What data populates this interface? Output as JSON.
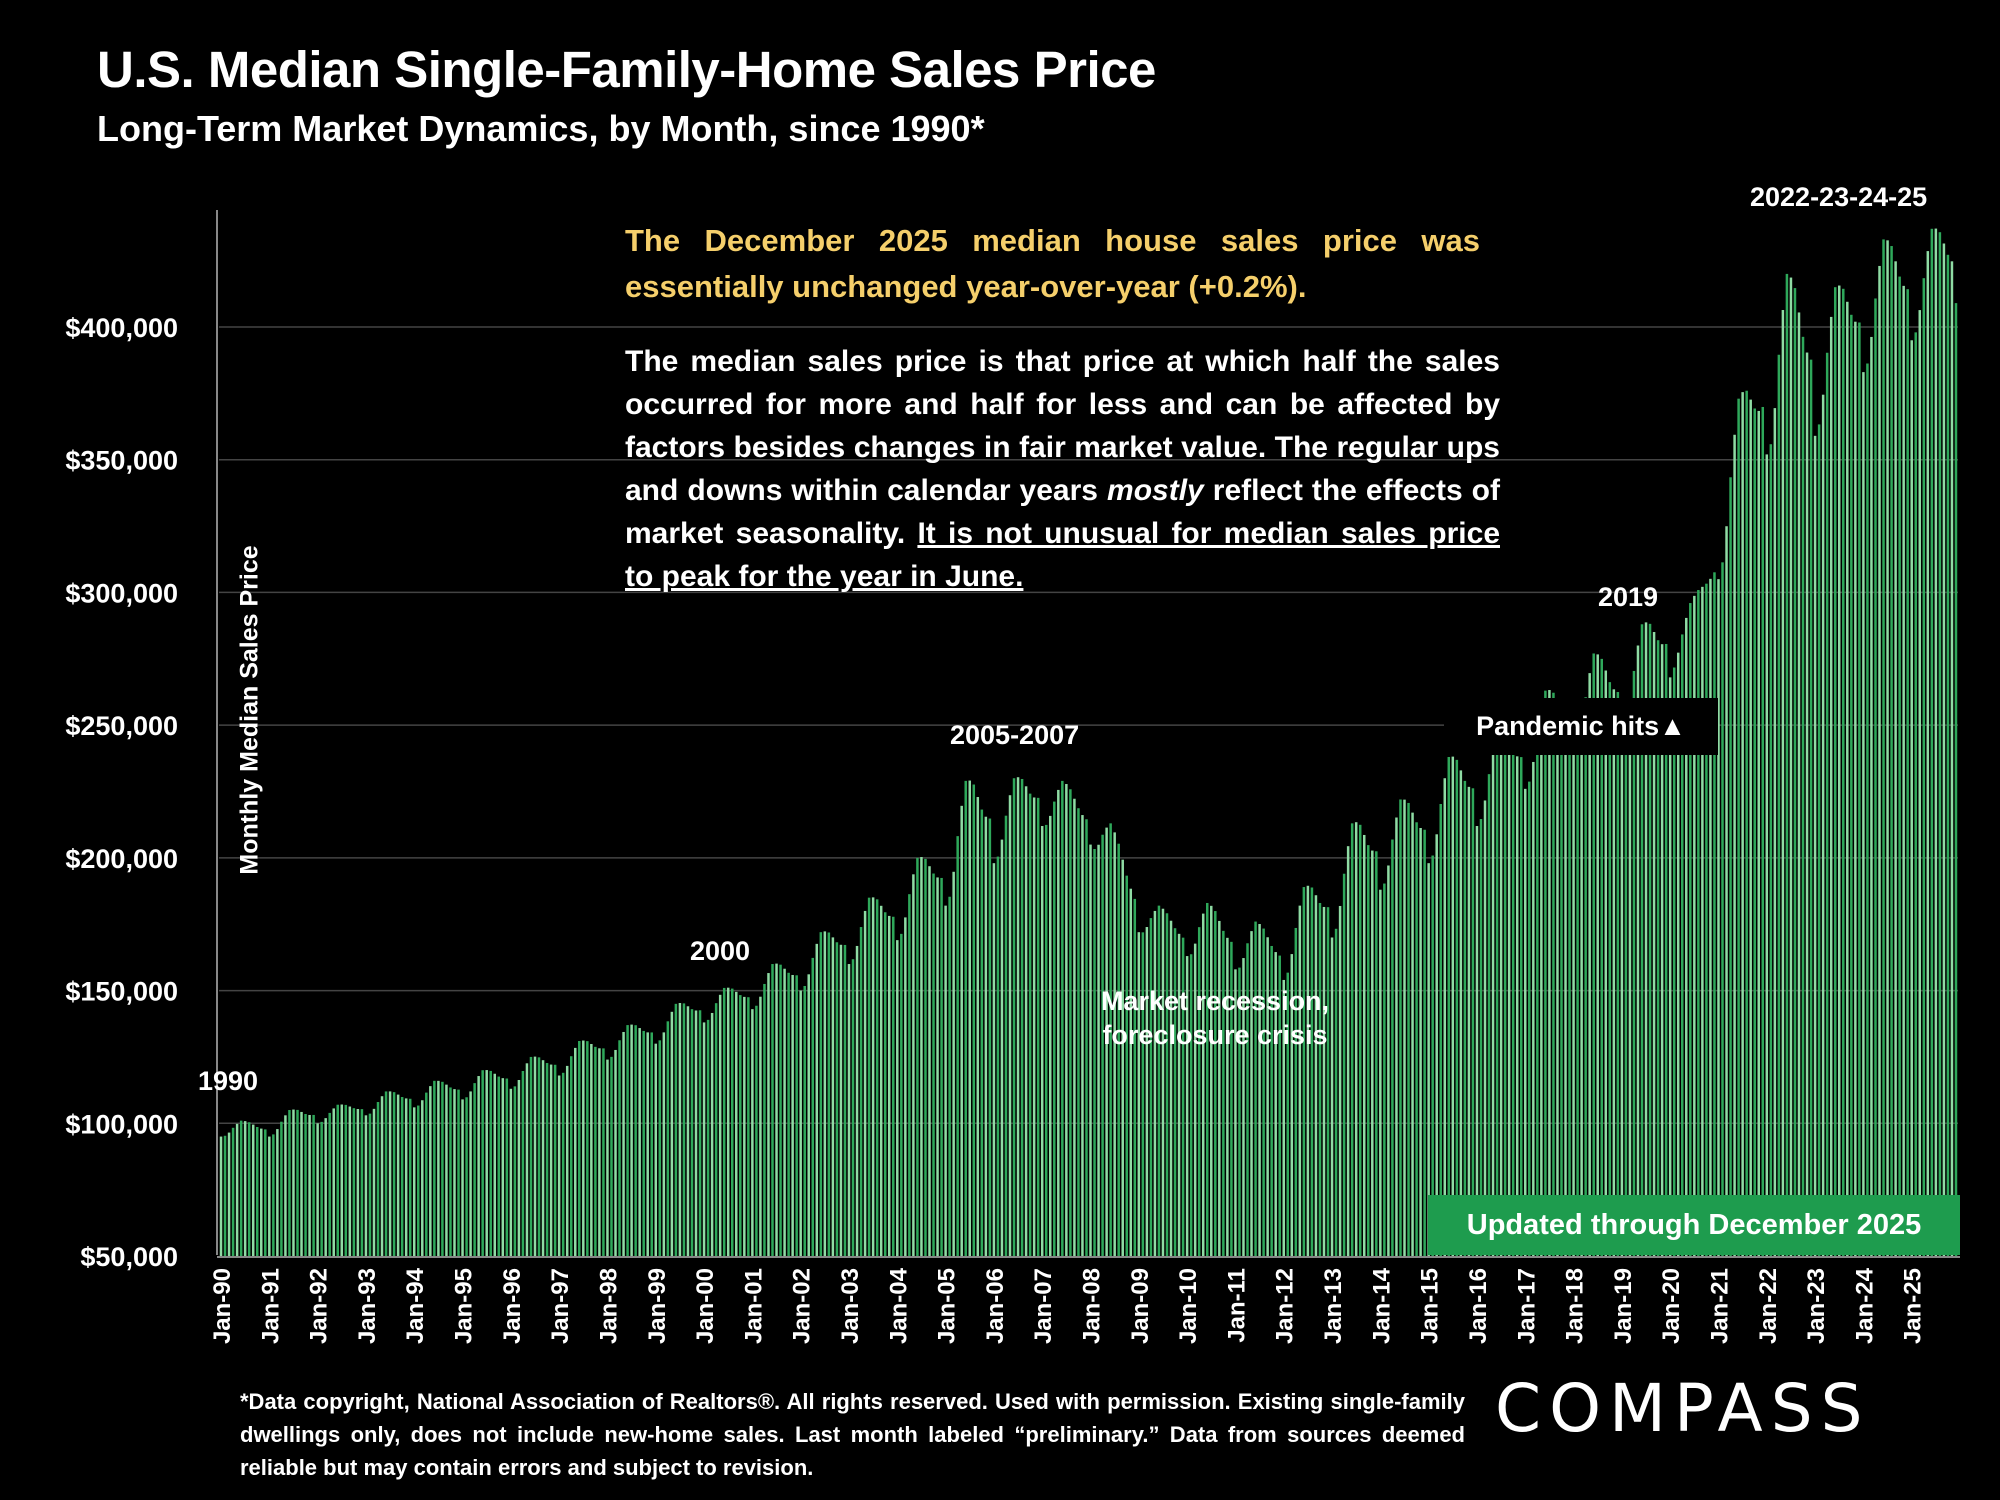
{
  "title": "U.S. Median Single-Family-Home Sales Price",
  "subtitle": "Long-Term Market Dynamics, by Month, since 1990*",
  "callout_highlight": "The December  2025 median house sales price was essentially unchanged year-over-year (+0.2%).",
  "callout_body_plain": "The median sales price is that price at which half the sales occurred for more and half for less and can be affected by factors besides changes in fair market value. The regular ups and downs within calendar years ",
  "callout_body_italic": "mostly",
  "callout_body_plain2": " reflect the effects of market seasonality. ",
  "callout_body_underlined": "It is not unusual for median sales price to peak for the year in June.",
  "annotations": {
    "a1990": "1990",
    "a2000": "2000",
    "a2005": "2005-2007",
    "a2019": "2019",
    "a2022": "2022-23-24-25",
    "recession": "Market recession, foreclosure crisis",
    "pandemic": "Pandemic hits▲"
  },
  "updated_badge": "Updated through December 2025",
  "footnote": "*Data copyright, National Association of Realtors®. All rights reserved. Used with permission. Existing single-family dwellings only, does  not include new-home sales. Last month labeled “preliminary.” Data from sources deemed reliable but may contain errors and subject to revision.",
  "logo": "COMPASS",
  "colors": {
    "bar": "#2ea85a",
    "bar_light": "#8fdca4",
    "background": "#000000",
    "highlight_text": "#f5cf6b",
    "grid": "#444444"
  },
  "chart_data": {
    "type": "bar",
    "title": "U.S. Median Single-Family-Home Sales Price",
    "ylabel": "Monthly Median Sales Price",
    "xlabel": "",
    "ylim": [
      50000,
      440000
    ],
    "y_ticks": [
      50000,
      100000,
      150000,
      200000,
      250000,
      300000,
      350000,
      400000
    ],
    "y_tick_labels": [
      "$50,000",
      "$100,000",
      "$150,000",
      "$200,000",
      "$250,000",
      "$300,000",
      "$350,000",
      "$400,000"
    ],
    "x_tick_labels": [
      "Jan-90",
      "Jan-91",
      "Jan-92",
      "Jan-93",
      "Jan-94",
      "Jan-95",
      "Jan-96",
      "Jan-97",
      "Jan-98",
      "Jan-99",
      "Jan-00",
      "Jan-01",
      "Jan-02",
      "Jan-03",
      "Jan-04",
      "Jan-05",
      "Jan-06",
      "Jan-07",
      "Jan-08",
      "Jan-09",
      "Jan-10",
      "Jan-11",
      "Jan-12",
      "Jan-13",
      "Jan-14",
      "Jan-15",
      "Jan-16",
      "Jan-17",
      "Jan-18",
      "Jan-19",
      "Jan-20",
      "Jan-21",
      "Jan-22",
      "Jan-23",
      "Jan-24",
      "Jan-25"
    ],
    "start": "Jan-1990",
    "end": "Dec-2025",
    "grid": true,
    "series": [
      {
        "yearly_january_values": [
          95000,
          95000,
          100000,
          103000,
          106000,
          109000,
          113000,
          118000,
          124000,
          130000,
          138000,
          143000,
          150000,
          160000,
          169000,
          182000,
          198000,
          212000,
          205000,
          172000,
          163000,
          158000,
          154000,
          170000,
          188000,
          198000,
          212000,
          226000,
          240000,
          248000,
          268000,
          305000,
          352000,
          359000,
          383000,
          395000
        ],
        "yearly_june_values": [
          101000,
          105000,
          107000,
          112000,
          116000,
          120000,
          125000,
          131000,
          137000,
          145000,
          151000,
          160000,
          172000,
          185000,
          200000,
          229000,
          230000,
          229000,
          213000,
          182000,
          183000,
          176000,
          189000,
          213000,
          222000,
          238000,
          247000,
          263000,
          277000,
          288000,
          296000,
          373000,
          420000,
          415000,
          433000,
          437000
        ],
        "last_value": 409000
      }
    ]
  }
}
